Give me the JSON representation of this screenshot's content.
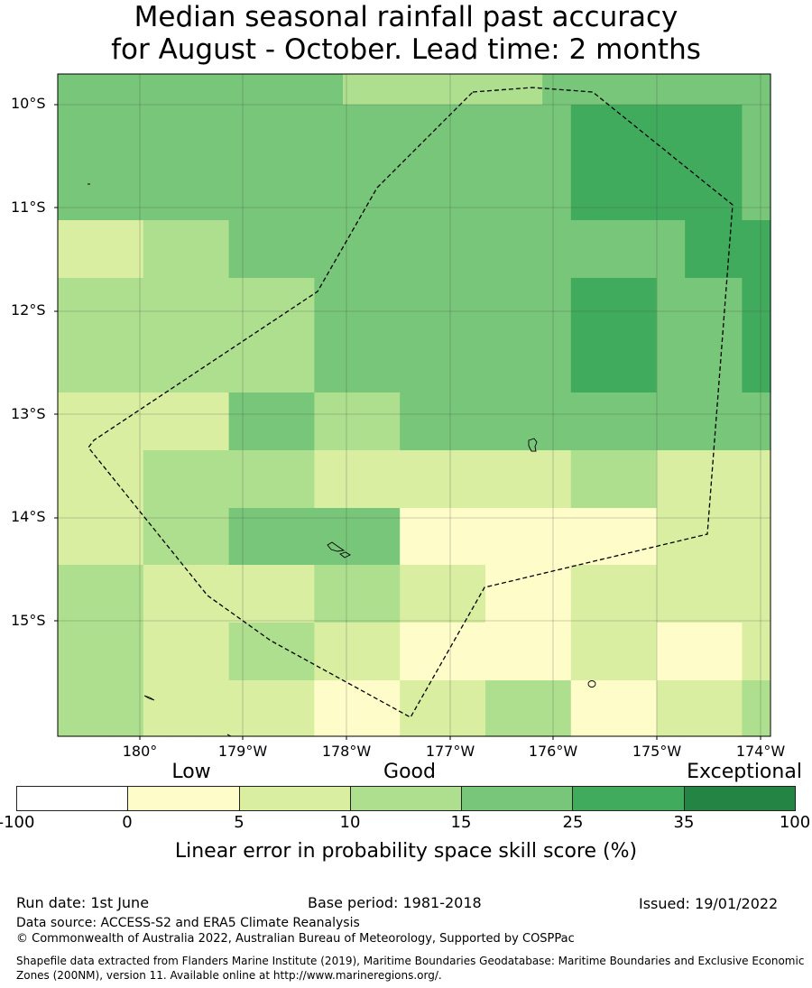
{
  "title": {
    "line1": "Median seasonal rainfall past accuracy",
    "line2": "for August - October. Lead time: 2 months"
  },
  "map": {
    "lat_labels": [
      "10°S",
      "11°S",
      "12°S",
      "13°S",
      "14°S",
      "15°S"
    ],
    "lon_labels": [
      "180°",
      "179°W",
      "178°W",
      "177°W",
      "176°W",
      "175°W",
      "174°W"
    ],
    "boundary": "dashed-maritime-boundary",
    "cell_categories": [
      [
        3,
        3,
        3,
        3,
        3,
        3,
        3,
        3,
        3,
        3,
        2,
        2,
        2,
        2,
        2,
        2,
        2,
        3,
        3,
        3,
        3,
        3,
        3,
        3,
        3
      ],
      [
        3,
        3,
        3,
        3,
        3,
        3,
        3,
        3,
        3,
        3,
        3,
        3,
        3,
        3,
        3,
        3,
        3,
        3,
        4,
        4,
        4,
        4,
        4,
        4,
        3
      ],
      [
        1,
        1,
        1,
        2,
        2,
        2,
        3,
        3,
        3,
        3,
        3,
        3,
        3,
        3,
        3,
        3,
        3,
        3,
        3,
        3,
        3,
        3,
        4,
        4,
        4
      ],
      [
        2,
        2,
        2,
        2,
        2,
        2,
        2,
        2,
        2,
        3,
        3,
        3,
        3,
        3,
        3,
        3,
        3,
        3,
        4,
        4,
        4,
        3,
        3,
        3,
        4
      ],
      [
        1,
        1,
        1,
        1,
        1,
        1,
        3,
        3,
        3,
        2,
        2,
        2,
        3,
        3,
        3,
        3,
        3,
        3,
        3,
        3,
        3,
        3,
        3,
        3,
        3
      ],
      [
        1,
        1,
        1,
        2,
        2,
        2,
        2,
        2,
        2,
        1,
        1,
        1,
        1,
        1,
        1,
        1,
        1,
        1,
        2,
        2,
        2,
        1,
        1,
        1,
        1
      ],
      [
        1,
        1,
        1,
        2,
        2,
        2,
        3,
        3,
        3,
        3,
        3,
        3,
        0,
        0,
        0,
        0,
        0,
        0,
        0,
        0,
        0,
        1,
        1,
        1,
        1
      ],
      [
        2,
        2,
        2,
        1,
        1,
        1,
        1,
        1,
        1,
        2,
        2,
        2,
        1,
        1,
        1,
        0,
        0,
        0,
        1,
        1,
        1,
        1,
        1,
        1,
        1
      ],
      [
        2,
        2,
        2,
        1,
        1,
        1,
        2,
        2,
        2,
        1,
        1,
        1,
        0,
        0,
        0,
        0,
        0,
        0,
        1,
        1,
        1,
        0,
        0,
        0,
        1
      ],
      [
        2,
        2,
        2,
        1,
        1,
        1,
        1,
        1,
        1,
        0,
        0,
        0,
        1,
        1,
        1,
        2,
        2,
        2,
        0,
        0,
        0,
        1,
        1,
        1,
        2
      ]
    ]
  },
  "legend": {
    "categories": [
      "Low",
      "Good",
      "Exceptional"
    ],
    "colors": [
      "#ffffff",
      "#fefdca",
      "#d9eea1",
      "#addf8e",
      "#78c679",
      "#41ab5d",
      "#238443"
    ],
    "ticks": [
      "-100",
      "0",
      "5",
      "10",
      "15",
      "25",
      "35",
      "100"
    ],
    "label": "Linear error in probability space skill score (%)"
  },
  "footer": {
    "run_date": "Run date: 1st June",
    "base_period": "Base period: 1981-2018",
    "issued": "Issued: 19/01/2022",
    "data_source": "Data source: ACCESS-S2 and ERA5 Climate Reanalysis",
    "copyright": "© Commonwealth of Australia 2022, Australian Bureau of Meteorology, Supported by COSPPac",
    "shapefile": "Shapefile data extracted from Flanders Marine Institute (2019), Maritime Boundaries Geodatabase: Maritime Boundaries and Exclusive Economic Zones (200NM), version 11. Available online at http://www.marineregions.org/."
  }
}
